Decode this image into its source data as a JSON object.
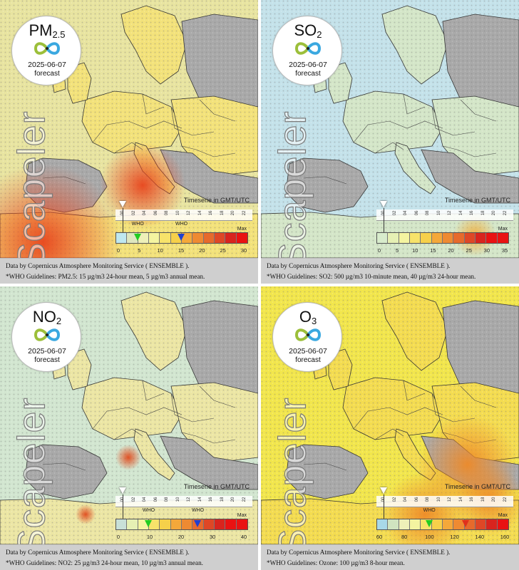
{
  "panels": [
    {
      "pollutant": "PM",
      "pollutant_sub": "2.5",
      "date": "2025-06-07",
      "forecast_label": "forecast",
      "watermark": "Scapeler",
      "timeserie_label": "Timeserie in GMT/UTC",
      "hours": [
        "00",
        "02",
        "04",
        "06",
        "08",
        "10",
        "12",
        "14",
        "16",
        "18",
        "20",
        "22"
      ],
      "who_labels": [
        "WHO",
        "WHO"
      ],
      "max_label": "Max",
      "scale_ticks": [
        "0",
        "5",
        "10",
        "15",
        "20",
        "25",
        "30"
      ],
      "scale_colors": [
        "#bfe8f0",
        "#dfe7bf",
        "#eef0b8",
        "#f4f4a0",
        "#f7e36a",
        "#f6d04a",
        "#f4a83a",
        "#ee8a32",
        "#e66a2c",
        "#de4726",
        "#d8241e",
        "#e91212"
      ],
      "markers": [
        {
          "color": "#22cc22",
          "value": 5
        },
        {
          "color": "#1f3fd0",
          "value": 15
        }
      ],
      "max_value": 30,
      "credit": "Data by Copernicus Atmosphere Monitoring Service ( ENSEMBLE ).",
      "who_note": "*WHO Guidelines: PM2.5: 15 µg/m3 24-hour mean, 5 µg/m3 annual mean.",
      "tint": "#f3e27a",
      "sea_tint": "#e8e4a0",
      "hot_color": "#e8441c"
    },
    {
      "pollutant": "SO",
      "pollutant_sub": "2",
      "date": "2025-06-07",
      "forecast_label": "forecast",
      "watermark": "Scapeler",
      "timeserie_label": "Timeserie in GMT/UTC",
      "hours": [
        "00",
        "02",
        "04",
        "06",
        "08",
        "10",
        "12",
        "14",
        "16",
        "18",
        "20",
        "22"
      ],
      "who_labels": [],
      "max_label": "Max",
      "scale_ticks": [
        "0",
        "5",
        "10",
        "15",
        "20",
        "25",
        "30",
        "35"
      ],
      "scale_colors": [
        "#d8eccc",
        "#e6f0b4",
        "#f4f4a0",
        "#f7e36a",
        "#f6d04a",
        "#f4a83a",
        "#ee8a32",
        "#e66a2c",
        "#de4726",
        "#d8241e",
        "#e91212",
        "#e91212"
      ],
      "markers": [],
      "max_value": 35,
      "credit": "Data by Copernicus Atmosphere Monitoring Service ( ENSEMBLE ).",
      "who_note": "*WHO Guidelines: SO2: 500 µg/m3 10-minute mean, 40 µg/m3 24-hour mean.",
      "tint": "#d4e6c8",
      "sea_tint": "#c4e2ea",
      "hot_color": "#f0b040"
    },
    {
      "pollutant": "NO",
      "pollutant_sub": "2",
      "date": "2025-06-07",
      "forecast_label": "forecast",
      "watermark": "Scapeler",
      "timeserie_label": "Timeserie in GMT/UTC",
      "hours": [
        "00",
        "02",
        "04",
        "06",
        "08",
        "10",
        "12",
        "14",
        "16",
        "18",
        "20",
        "22"
      ],
      "who_labels": [
        "WHO",
        "WHO"
      ],
      "max_label": "Max",
      "scale_ticks": [
        "0",
        "10",
        "20",
        "30",
        "40"
      ],
      "scale_colors": [
        "#c8e0d8",
        "#e6f0b4",
        "#f4f4a0",
        "#f7e36a",
        "#f6d04a",
        "#f4a83a",
        "#ee8a32",
        "#e66a2c",
        "#de4726",
        "#d8241e",
        "#e91212",
        "#e91212"
      ],
      "markers": [
        {
          "color": "#22cc22",
          "value": 10
        },
        {
          "color": "#1f3fd0",
          "value": 25
        }
      ],
      "max_value": 40,
      "credit": "Data by Copernicus Atmosphere Monitoring Service ( ENSEMBLE ).",
      "who_note": "*WHO Guidelines: NO2: 25 µg/m3 24-hour mean, 10 µg/m3 annual mean.",
      "tint": "#ece6a4",
      "sea_tint": "#d2e6d0",
      "hot_color": "#e04a1c"
    },
    {
      "pollutant": "O",
      "pollutant_sub": "3",
      "date": "2025-06-07",
      "forecast_label": "forecast",
      "watermark": "Scapeler",
      "timeserie_label": "Timeserie in GMT/UTC",
      "hours": [
        "00",
        "02",
        "04",
        "06",
        "08",
        "10",
        "12",
        "14",
        "16",
        "18",
        "20",
        "22"
      ],
      "who_labels": [
        "WHO"
      ],
      "max_label": "Max",
      "scale_ticks": [
        "60",
        "80",
        "100",
        "120",
        "140",
        "160"
      ],
      "scale_colors": [
        "#a8d8e8",
        "#d0e4c0",
        "#eef0b8",
        "#f4f4a0",
        "#f7e36a",
        "#f6d04a",
        "#f4a83a",
        "#ee8a32",
        "#e66a2c",
        "#de4726",
        "#d8241e",
        "#e91212"
      ],
      "markers": [
        {
          "color": "#22cc22",
          "value": 100
        },
        {
          "color": "#e0301c",
          "value": 128
        }
      ],
      "max_value": 160,
      "credit": "Data by Copernicus Atmosphere Monitoring Service ( ENSEMBLE ).",
      "who_note": "*WHO Guidelines: Ozone: 100 µg/m3 8-hour mean.",
      "tint": "#f4dc50",
      "sea_tint": "#f2e64c",
      "hot_color": "#ee8a28"
    }
  ]
}
